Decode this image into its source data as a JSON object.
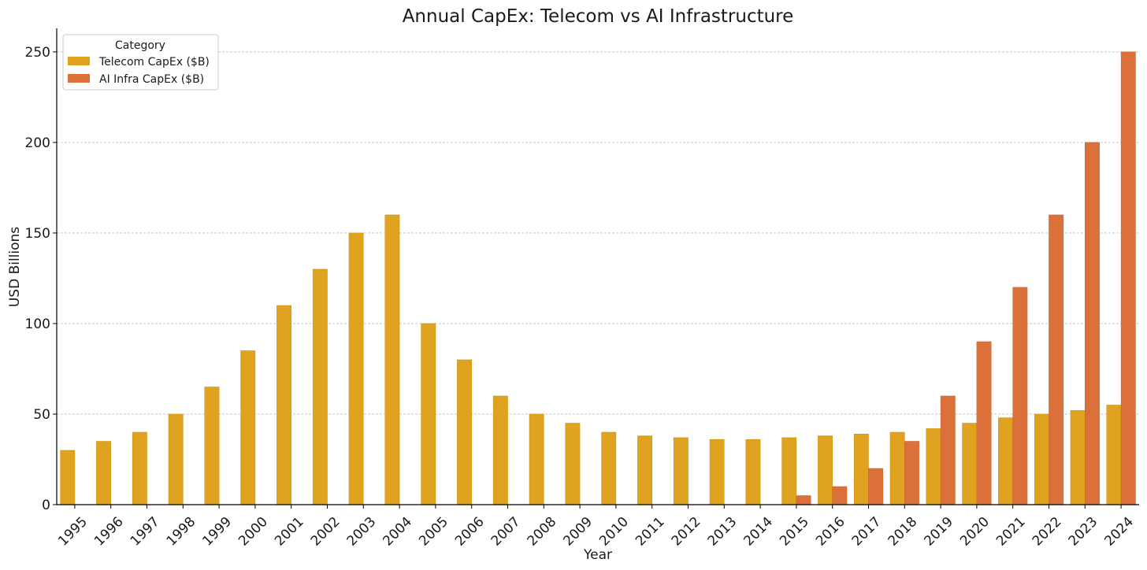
{
  "chart_data": {
    "type": "bar",
    "title": "Annual CapEx: Telecom vs AI Infrastructure",
    "xlabel": "Year",
    "ylabel": "USD Billions",
    "ylim": [
      0,
      263
    ],
    "yticks": [
      0,
      50,
      100,
      150,
      200,
      250
    ],
    "grid": "horizontal dashed",
    "legend": {
      "title": "Category",
      "placement": "top-left"
    },
    "categories": [
      "1995",
      "1996",
      "1997",
      "1998",
      "1999",
      "2000",
      "2001",
      "2002",
      "2003",
      "2004",
      "2005",
      "2006",
      "2007",
      "2008",
      "2009",
      "2010",
      "2011",
      "2012",
      "2013",
      "2014",
      "2015",
      "2016",
      "2017",
      "2018",
      "2019",
      "2020",
      "2021",
      "2022",
      "2023",
      "2024"
    ],
    "series": [
      {
        "name": "Telecom CapEx ($B)",
        "color": "#DFA320",
        "values": [
          30,
          35,
          40,
          50,
          65,
          85,
          110,
          130,
          150,
          160,
          100,
          80,
          60,
          50,
          45,
          40,
          38,
          37,
          36,
          36,
          37,
          38,
          39,
          40,
          42,
          45,
          48,
          50,
          52,
          55
        ]
      },
      {
        "name": "AI Infra CapEx ($B)",
        "color": "#DC703A",
        "values": [
          0,
          0,
          0,
          0,
          0,
          0,
          0,
          0,
          0,
          0,
          0,
          0,
          0,
          0,
          0,
          0,
          0,
          0,
          0,
          0,
          5,
          10,
          20,
          35,
          60,
          90,
          120,
          160,
          200,
          250
        ]
      }
    ]
  }
}
